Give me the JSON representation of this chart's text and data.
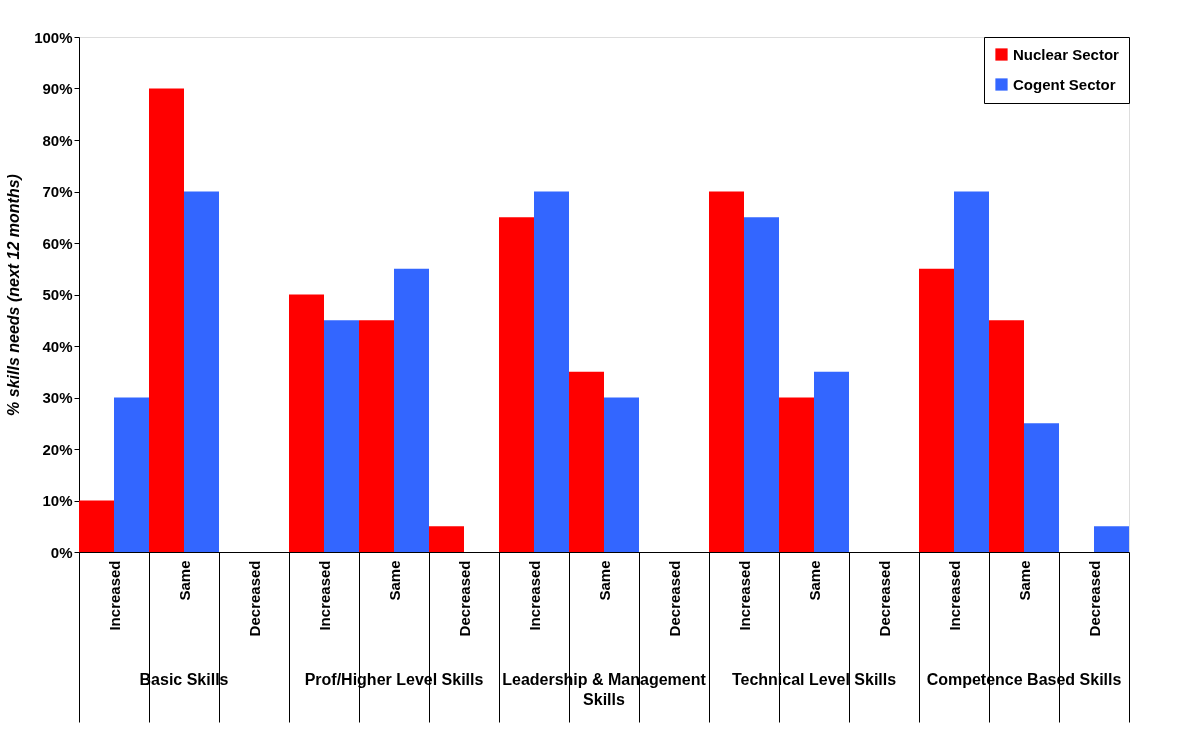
{
  "chart_data": {
    "type": "bar",
    "ylabel": "% skills needs (next 12 months)",
    "categories": [
      "Increased",
      "Same",
      "Decreased",
      "Increased",
      "Same",
      "Decreased",
      "Increased",
      "Same",
      "Decreased",
      "Increased",
      "Same",
      "Decreased",
      "Increased",
      "Same",
      "Decreased"
    ],
    "annotations": [
      "Basic Skills",
      "Prof/Higher Level Skills",
      "Leadership & Management Skills",
      "Technical Level Skills",
      "Competence Based Skills"
    ],
    "series": [
      {
        "name": "Nuclear Sector",
        "color": "#ff0000",
        "values": [
          10,
          90,
          0,
          50,
          45,
          5,
          65,
          35,
          0,
          70,
          30,
          0,
          55,
          45,
          0
        ]
      },
      {
        "name": "Cogent Sector",
        "color": "#3366ff",
        "values": [
          30,
          70,
          0,
          45,
          55,
          0,
          70,
          30,
          0,
          65,
          35,
          0,
          70,
          25,
          5
        ]
      }
    ],
    "ylim": [
      0,
      100
    ],
    "yticks": [
      {
        "value": 0,
        "label": "0%"
      },
      {
        "value": 10,
        "label": "10%"
      },
      {
        "value": 20,
        "label": "20%"
      },
      {
        "value": 30,
        "label": "30%"
      },
      {
        "value": 40,
        "label": "40%"
      },
      {
        "value": 50,
        "label": "50%"
      },
      {
        "value": 60,
        "label": "60%"
      },
      {
        "value": 70,
        "label": "70%"
      },
      {
        "value": 80,
        "label": "80%"
      },
      {
        "value": 90,
        "label": "90%"
      },
      {
        "value": 100,
        "label": "100%"
      }
    ],
    "grid": false,
    "legend": "top right"
  }
}
